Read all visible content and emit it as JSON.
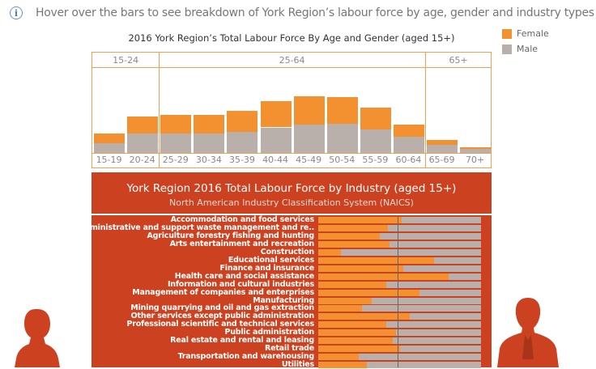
{
  "header": {
    "info_icon": "info-icon",
    "text": "Hover over the bars to see breakdown of York Region’s labour force by age, gender and industry types"
  },
  "colors": {
    "female": "#f39130",
    "male": "#bab0ab",
    "panel": "#cc4220",
    "border": "#f0a050"
  },
  "legend": [
    {
      "label": "Female"
    },
    {
      "label": "Male"
    }
  ],
  "chart_data": [
    {
      "type": "bar",
      "stacked": true,
      "title": "2016 York Region’s Total Labour Force By Age and Gender (aged 15+)",
      "groups": [
        {
          "label": "15-24",
          "categories": [
            "15-19",
            "20-24"
          ]
        },
        {
          "label": "25-64",
          "categories": [
            "25-29",
            "30-34",
            "35-39",
            "40-44",
            "45-49",
            "50-54",
            "55-59",
            "60-64"
          ]
        },
        {
          "label": "65+",
          "categories": [
            "65-69",
            "70+"
          ]
        }
      ],
      "categories": [
        "15-19",
        "20-24",
        "25-29",
        "30-34",
        "35-39",
        "40-44",
        "45-49",
        "50-54",
        "55-59",
        "60-64",
        "65-69",
        "70+"
      ],
      "series": [
        {
          "name": "Male",
          "values": [
            52,
            101,
            104,
            104,
            110,
            135,
            149,
            154,
            126,
            85,
            41,
            22
          ]
        },
        {
          "name": "Female",
          "values": [
            52,
            94,
            99,
            99,
            115,
            141,
            151,
            143,
            113,
            66,
            27,
            10
          ]
        }
      ],
      "y_axis_shown": false,
      "grid": false,
      "legend": "right"
    },
    {
      "type": "bar",
      "stacked": true,
      "orientation": "horizontal",
      "normalized": true,
      "title": "York Region 2016 Total Labour Force by Industry (aged 15+)",
      "subtitle": "North American Industry Classification System (NAICS)",
      "categories": [
        "Accommodation and food services",
        "Administrative and support  waste management and re..",
        "Agriculture  forestry  fishing and hunting",
        "Arts  entertainment and recreation",
        "Construction",
        "Educational services",
        "Finance and insurance",
        "Health care and social assistance",
        "Information and cultural industries",
        "Management of companies and enterprises",
        "Manufacturing",
        "Mining  quarrying  and oil and gas extraction",
        "Other services  except public administration",
        "Professional  scientific and technical services",
        "Public administration",
        "Real estate and rental and leasing",
        "Retail trade",
        "Transportation and warehousing",
        "Utilities"
      ],
      "female_share": [
        0.51,
        0.43,
        0.38,
        0.44,
        0.14,
        0.71,
        0.52,
        0.8,
        0.42,
        0.62,
        0.33,
        0.27,
        0.56,
        0.42,
        0.48,
        0.46,
        0.5,
        0.25,
        0.3
      ],
      "reference_line": 0.49,
      "xlim": [
        0,
        1
      ]
    }
  ]
}
